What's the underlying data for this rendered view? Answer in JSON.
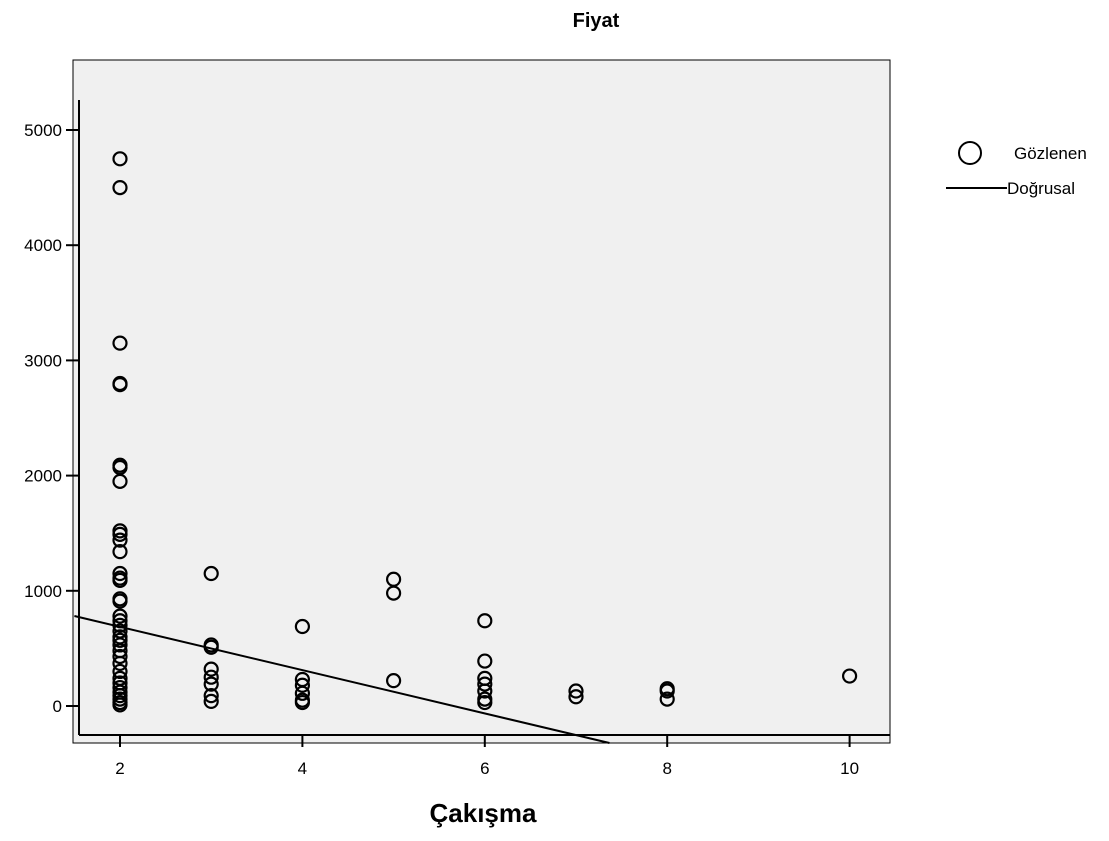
{
  "chart_data": {
    "type": "scatter",
    "title": "Fiyat",
    "xlabel": "Çakışma",
    "ylabel": "",
    "xlim": [
      1.5,
      10.5
    ],
    "ylim": [
      -200,
      5300
    ],
    "xticks": [
      2,
      4,
      6,
      8,
      10
    ],
    "yticks": [
      0,
      1000,
      2000,
      3000,
      4000,
      5000
    ],
    "grid": false,
    "legend_position": "right",
    "legend": [
      {
        "label": "Gözlenen",
        "symbol": "circle"
      },
      {
        "label": "Doğrusal",
        "symbol": "line"
      }
    ],
    "series": [
      {
        "name": "Gözlenen",
        "points": [
          [
            2,
            4750
          ],
          [
            2,
            4500
          ],
          [
            2,
            3150
          ],
          [
            2,
            2800
          ],
          [
            2,
            2790
          ],
          [
            2,
            2090
          ],
          [
            2,
            2070
          ],
          [
            2,
            1950
          ],
          [
            2,
            1520
          ],
          [
            2,
            1490
          ],
          [
            2,
            1440
          ],
          [
            2,
            1340
          ],
          [
            2,
            1150
          ],
          [
            2,
            1110
          ],
          [
            2,
            1090
          ],
          [
            2,
            930
          ],
          [
            2,
            910
          ],
          [
            2,
            780
          ],
          [
            2,
            740
          ],
          [
            2,
            700
          ],
          [
            2,
            650
          ],
          [
            2,
            600
          ],
          [
            2,
            570
          ],
          [
            2,
            530
          ],
          [
            2,
            480
          ],
          [
            2,
            430
          ],
          [
            2,
            370
          ],
          [
            2,
            300
          ],
          [
            2,
            240
          ],
          [
            2,
            200
          ],
          [
            2,
            160
          ],
          [
            2,
            120
          ],
          [
            2,
            90
          ],
          [
            2,
            60
          ],
          [
            2,
            30
          ],
          [
            2,
            10
          ],
          [
            3,
            1150
          ],
          [
            3,
            530
          ],
          [
            3,
            510
          ],
          [
            3,
            320
          ],
          [
            3,
            250
          ],
          [
            3,
            190
          ],
          [
            3,
            90
          ],
          [
            3,
            40
          ],
          [
            4,
            690
          ],
          [
            4,
            230
          ],
          [
            4,
            180
          ],
          [
            4,
            110
          ],
          [
            4,
            50
          ],
          [
            4,
            30
          ],
          [
            5,
            1100
          ],
          [
            5,
            980
          ],
          [
            5,
            220
          ],
          [
            6,
            740
          ],
          [
            6,
            390
          ],
          [
            6,
            240
          ],
          [
            6,
            190
          ],
          [
            6,
            130
          ],
          [
            6,
            60
          ],
          [
            6,
            30
          ],
          [
            7,
            130
          ],
          [
            7,
            80
          ],
          [
            8,
            150
          ],
          [
            8,
            130
          ],
          [
            8,
            60
          ],
          [
            10,
            260
          ]
        ]
      },
      {
        "name": "Doğrusal",
        "line": {
          "intercept": 1063,
          "slope": -187.9
        }
      }
    ]
  }
}
